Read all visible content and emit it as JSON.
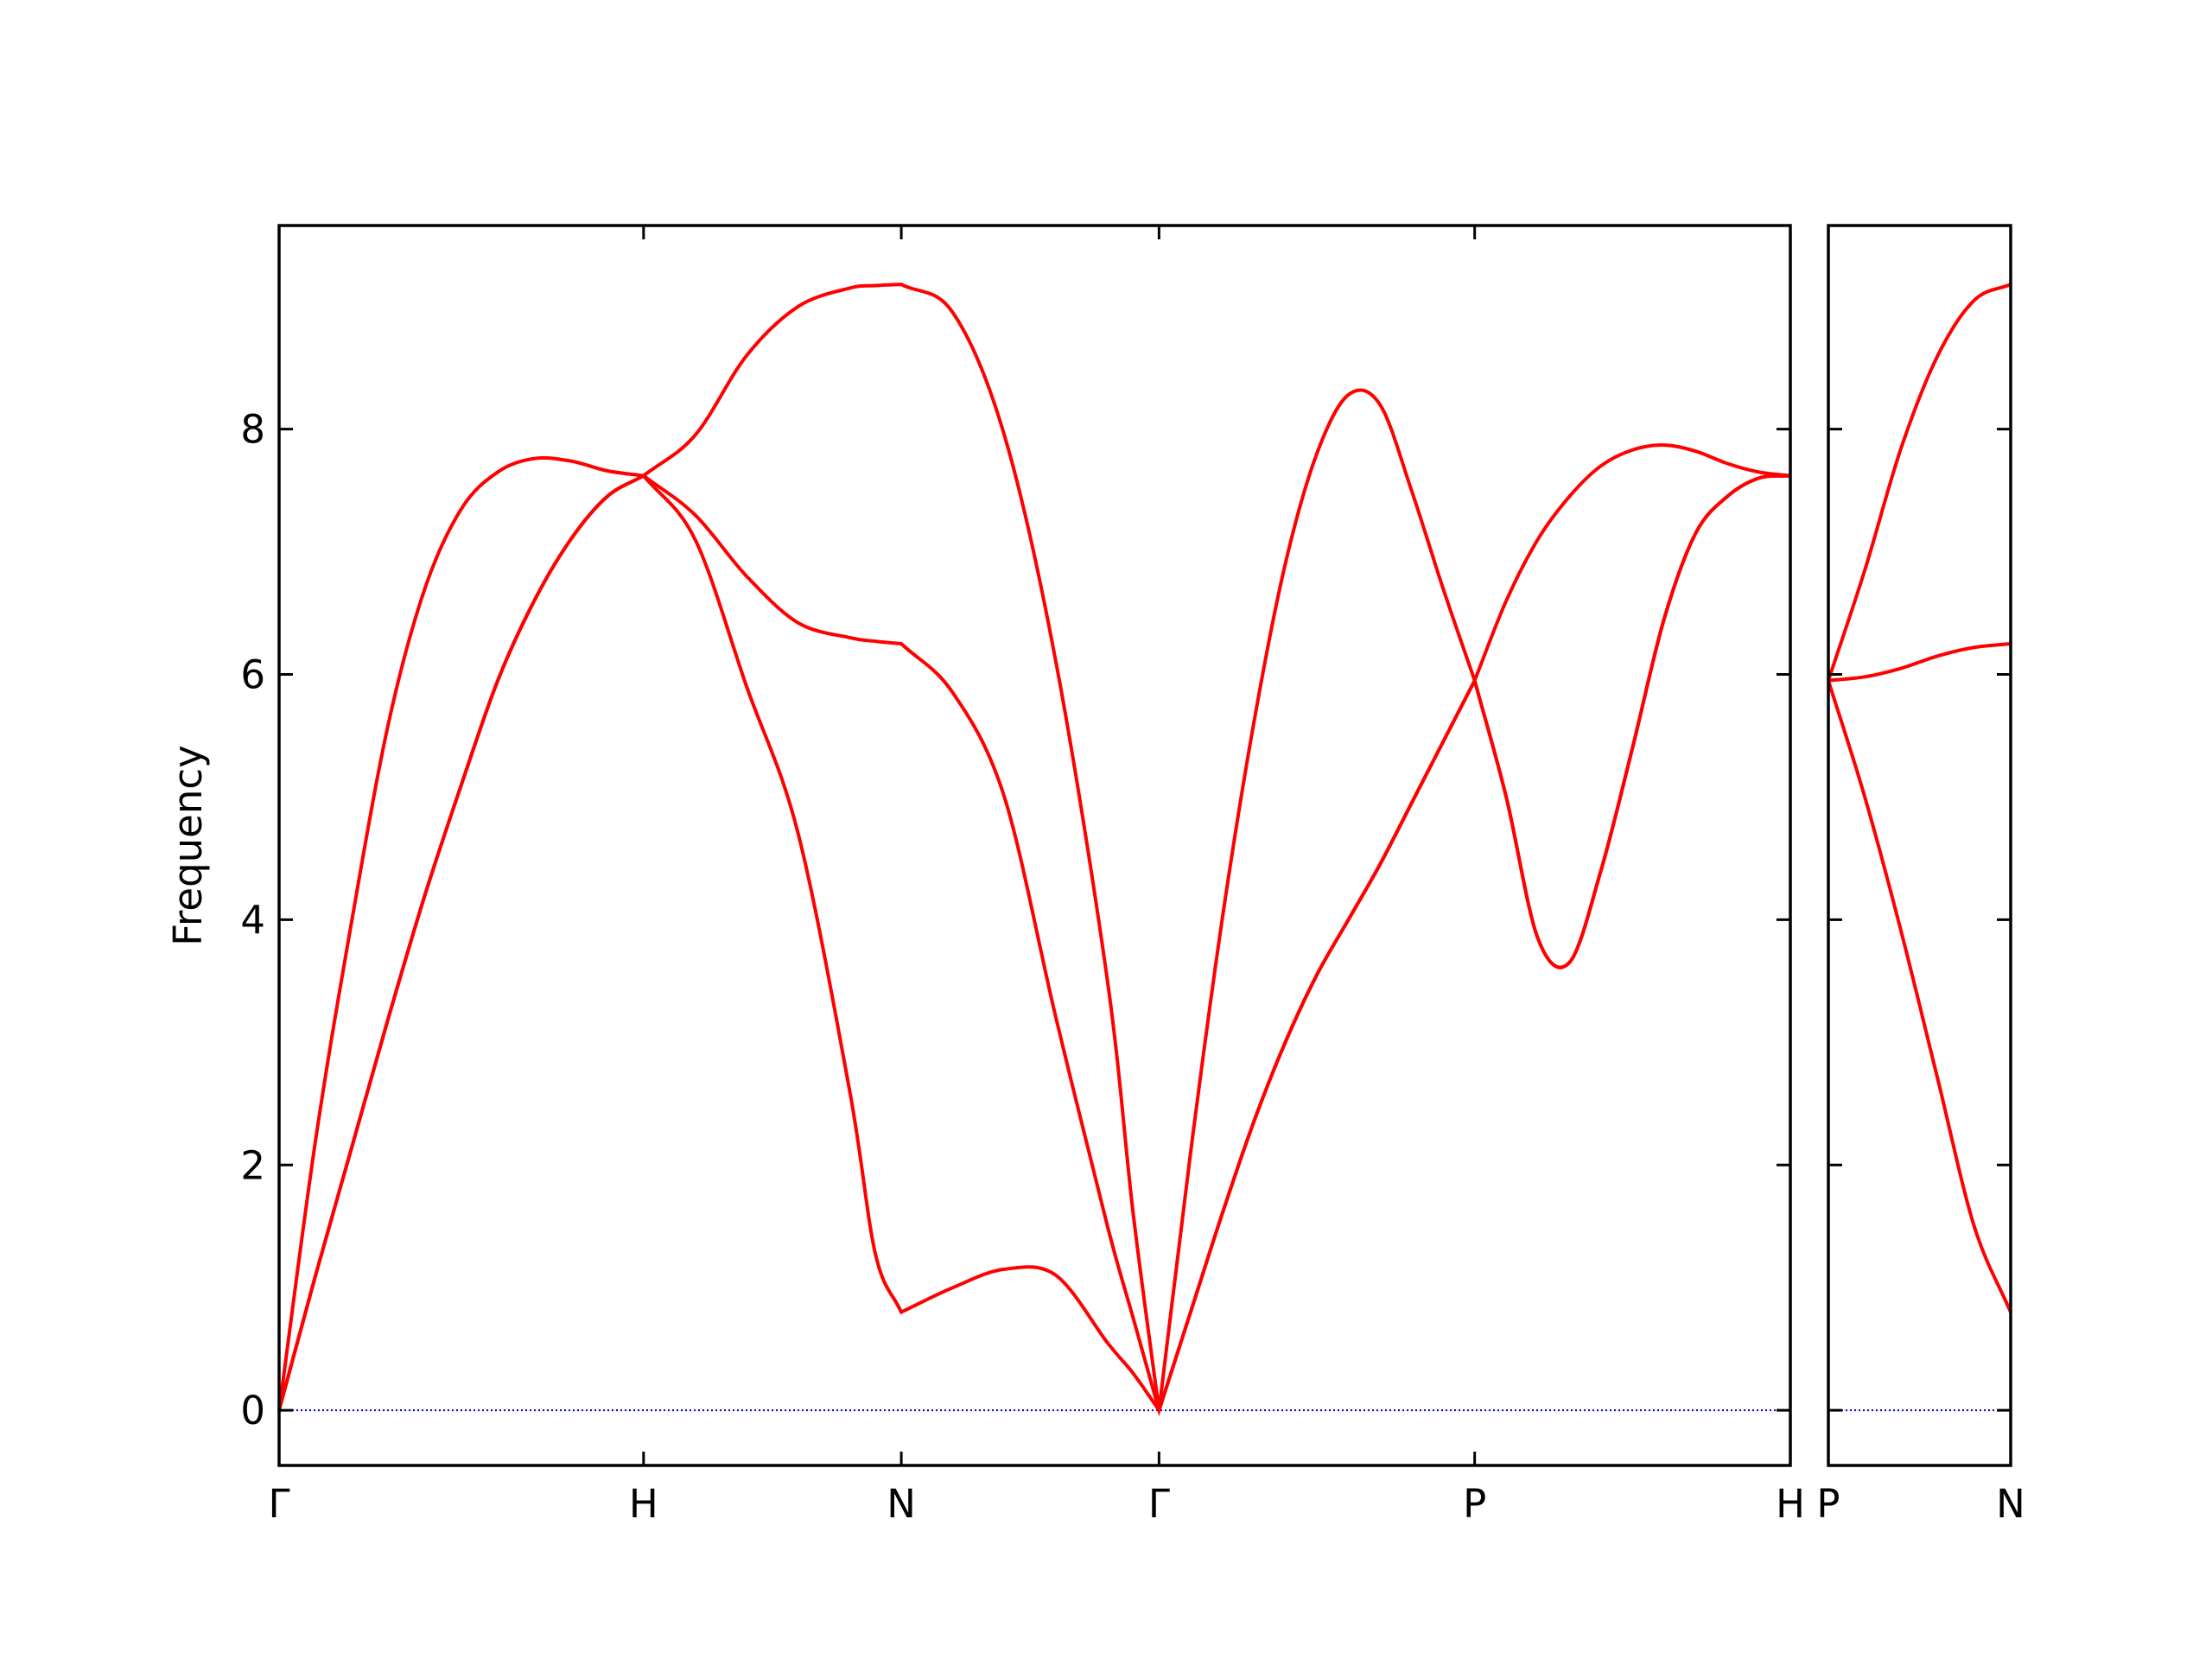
{
  "chart_data": [
    {
      "type": "line",
      "ylabel": "Frequency",
      "x": [
        0,
        0.1,
        0.2,
        0.3,
        0.4,
        0.5,
        0.6,
        0.7,
        0.8,
        0.9,
        1,
        1.1414,
        1.2828,
        1.4243,
        1.5657,
        1.6364,
        1.7071,
        1.8485,
        1.9899,
        2.1314,
        2.2728,
        2.3435,
        2.4142,
        2.5008,
        2.5874,
        2.674,
        2.7606,
        2.8472,
        2.9338,
        3.0204,
        3.107,
        3.1936,
        3.2802,
        3.3668,
        3.4534,
        3.54,
        3.6266,
        3.7132,
        3.7998,
        3.8864,
        3.973,
        4.0596,
        4.1463
      ],
      "series": [
        {
          "color": "#ff0000",
          "values": [
            0,
            1.1,
            2.15,
            3.2,
            4.2,
            5.1,
            5.95,
            6.6,
            7.1,
            7.45,
            7.62,
            7.1,
            5.9,
            4.7,
            2.6,
            1.27,
            0.8,
            1.0,
            1.15,
            1.1,
            0.55,
            0.3,
            0,
            0.8,
            1.6,
            2.35,
            3.0,
            3.55,
            4.0,
            4.45,
            4.95,
            5.45,
            5.95,
            5.0,
            3.85,
            3.65,
            4.4,
            5.4,
            6.45,
            7.15,
            7.45,
            7.6,
            7.62
          ]
        },
        {
          "color": "#ff0000",
          "values": [
            0,
            1.1,
            2.15,
            3.2,
            4.2,
            5.1,
            5.95,
            6.6,
            7.1,
            7.45,
            7.62,
            7.3,
            6.8,
            6.42,
            6.3,
            6.27,
            6.25,
            5.85,
            5.0,
            3.2,
            1.5,
            0.75,
            0,
            0.8,
            1.6,
            2.35,
            3.0,
            3.55,
            4.0,
            4.45,
            4.95,
            5.45,
            5.95,
            5.0,
            3.85,
            3.65,
            4.4,
            5.4,
            6.45,
            7.15,
            7.45,
            7.6,
            7.62
          ]
        },
        {
          "color": "#ff0000",
          "values": [
            0,
            2.2,
            4.0,
            5.6,
            6.7,
            7.35,
            7.65,
            7.76,
            7.74,
            7.66,
            7.62,
            7.95,
            8.6,
            9.0,
            9.15,
            9.17,
            9.18,
            8.95,
            7.95,
            6.1,
            3.5,
            1.6,
            0,
            2.1,
            4.0,
            5.6,
            6.9,
            7.8,
            8.28,
            8.2,
            7.5,
            6.7,
            5.95,
            6.6,
            7.1,
            7.45,
            7.7,
            7.83,
            7.87,
            7.82,
            7.72,
            7.65,
            7.62
          ]
        }
      ],
      "xlim": [
        0,
        4.1463
      ],
      "ylim": [
        -0.45,
        9.66
      ],
      "xticks": [
        {
          "value": 0,
          "label": "Γ"
        },
        {
          "value": 1,
          "label": "H"
        },
        {
          "value": 1.7071,
          "label": "N"
        },
        {
          "value": 2.4142,
          "label": "Γ"
        },
        {
          "value": 3.2802,
          "label": "P"
        },
        {
          "value": 4.1463,
          "label": "H"
        }
      ],
      "yticks": [
        0,
        2,
        4,
        6,
        8
      ],
      "hlines": [
        0
      ],
      "hline_color": "#0000cc"
    },
    {
      "type": "line",
      "x": [
        0,
        0.1,
        0.2,
        0.3,
        0.4,
        0.5
      ],
      "series": [
        {
          "color": "#ff0000",
          "values": [
            5.95,
            5.0,
            3.9,
            2.7,
            1.5,
            0.8
          ]
        },
        {
          "color": "#ff0000",
          "values": [
            5.95,
            5.98,
            6.05,
            6.15,
            6.22,
            6.25
          ]
        },
        {
          "color": "#ff0000",
          "values": [
            5.95,
            6.85,
            7.85,
            8.6,
            9.05,
            9.18
          ]
        }
      ],
      "xlim": [
        0,
        0.5
      ],
      "ylim": [
        -0.45,
        9.66
      ],
      "xticks": [
        {
          "value": 0,
          "label": "P"
        },
        {
          "value": 0.5,
          "label": "N"
        }
      ],
      "yticks": [
        0,
        2,
        4,
        6,
        8
      ],
      "show_ytick_labels": false,
      "hlines": [
        0
      ],
      "hline_color": "#0000cc"
    }
  ]
}
